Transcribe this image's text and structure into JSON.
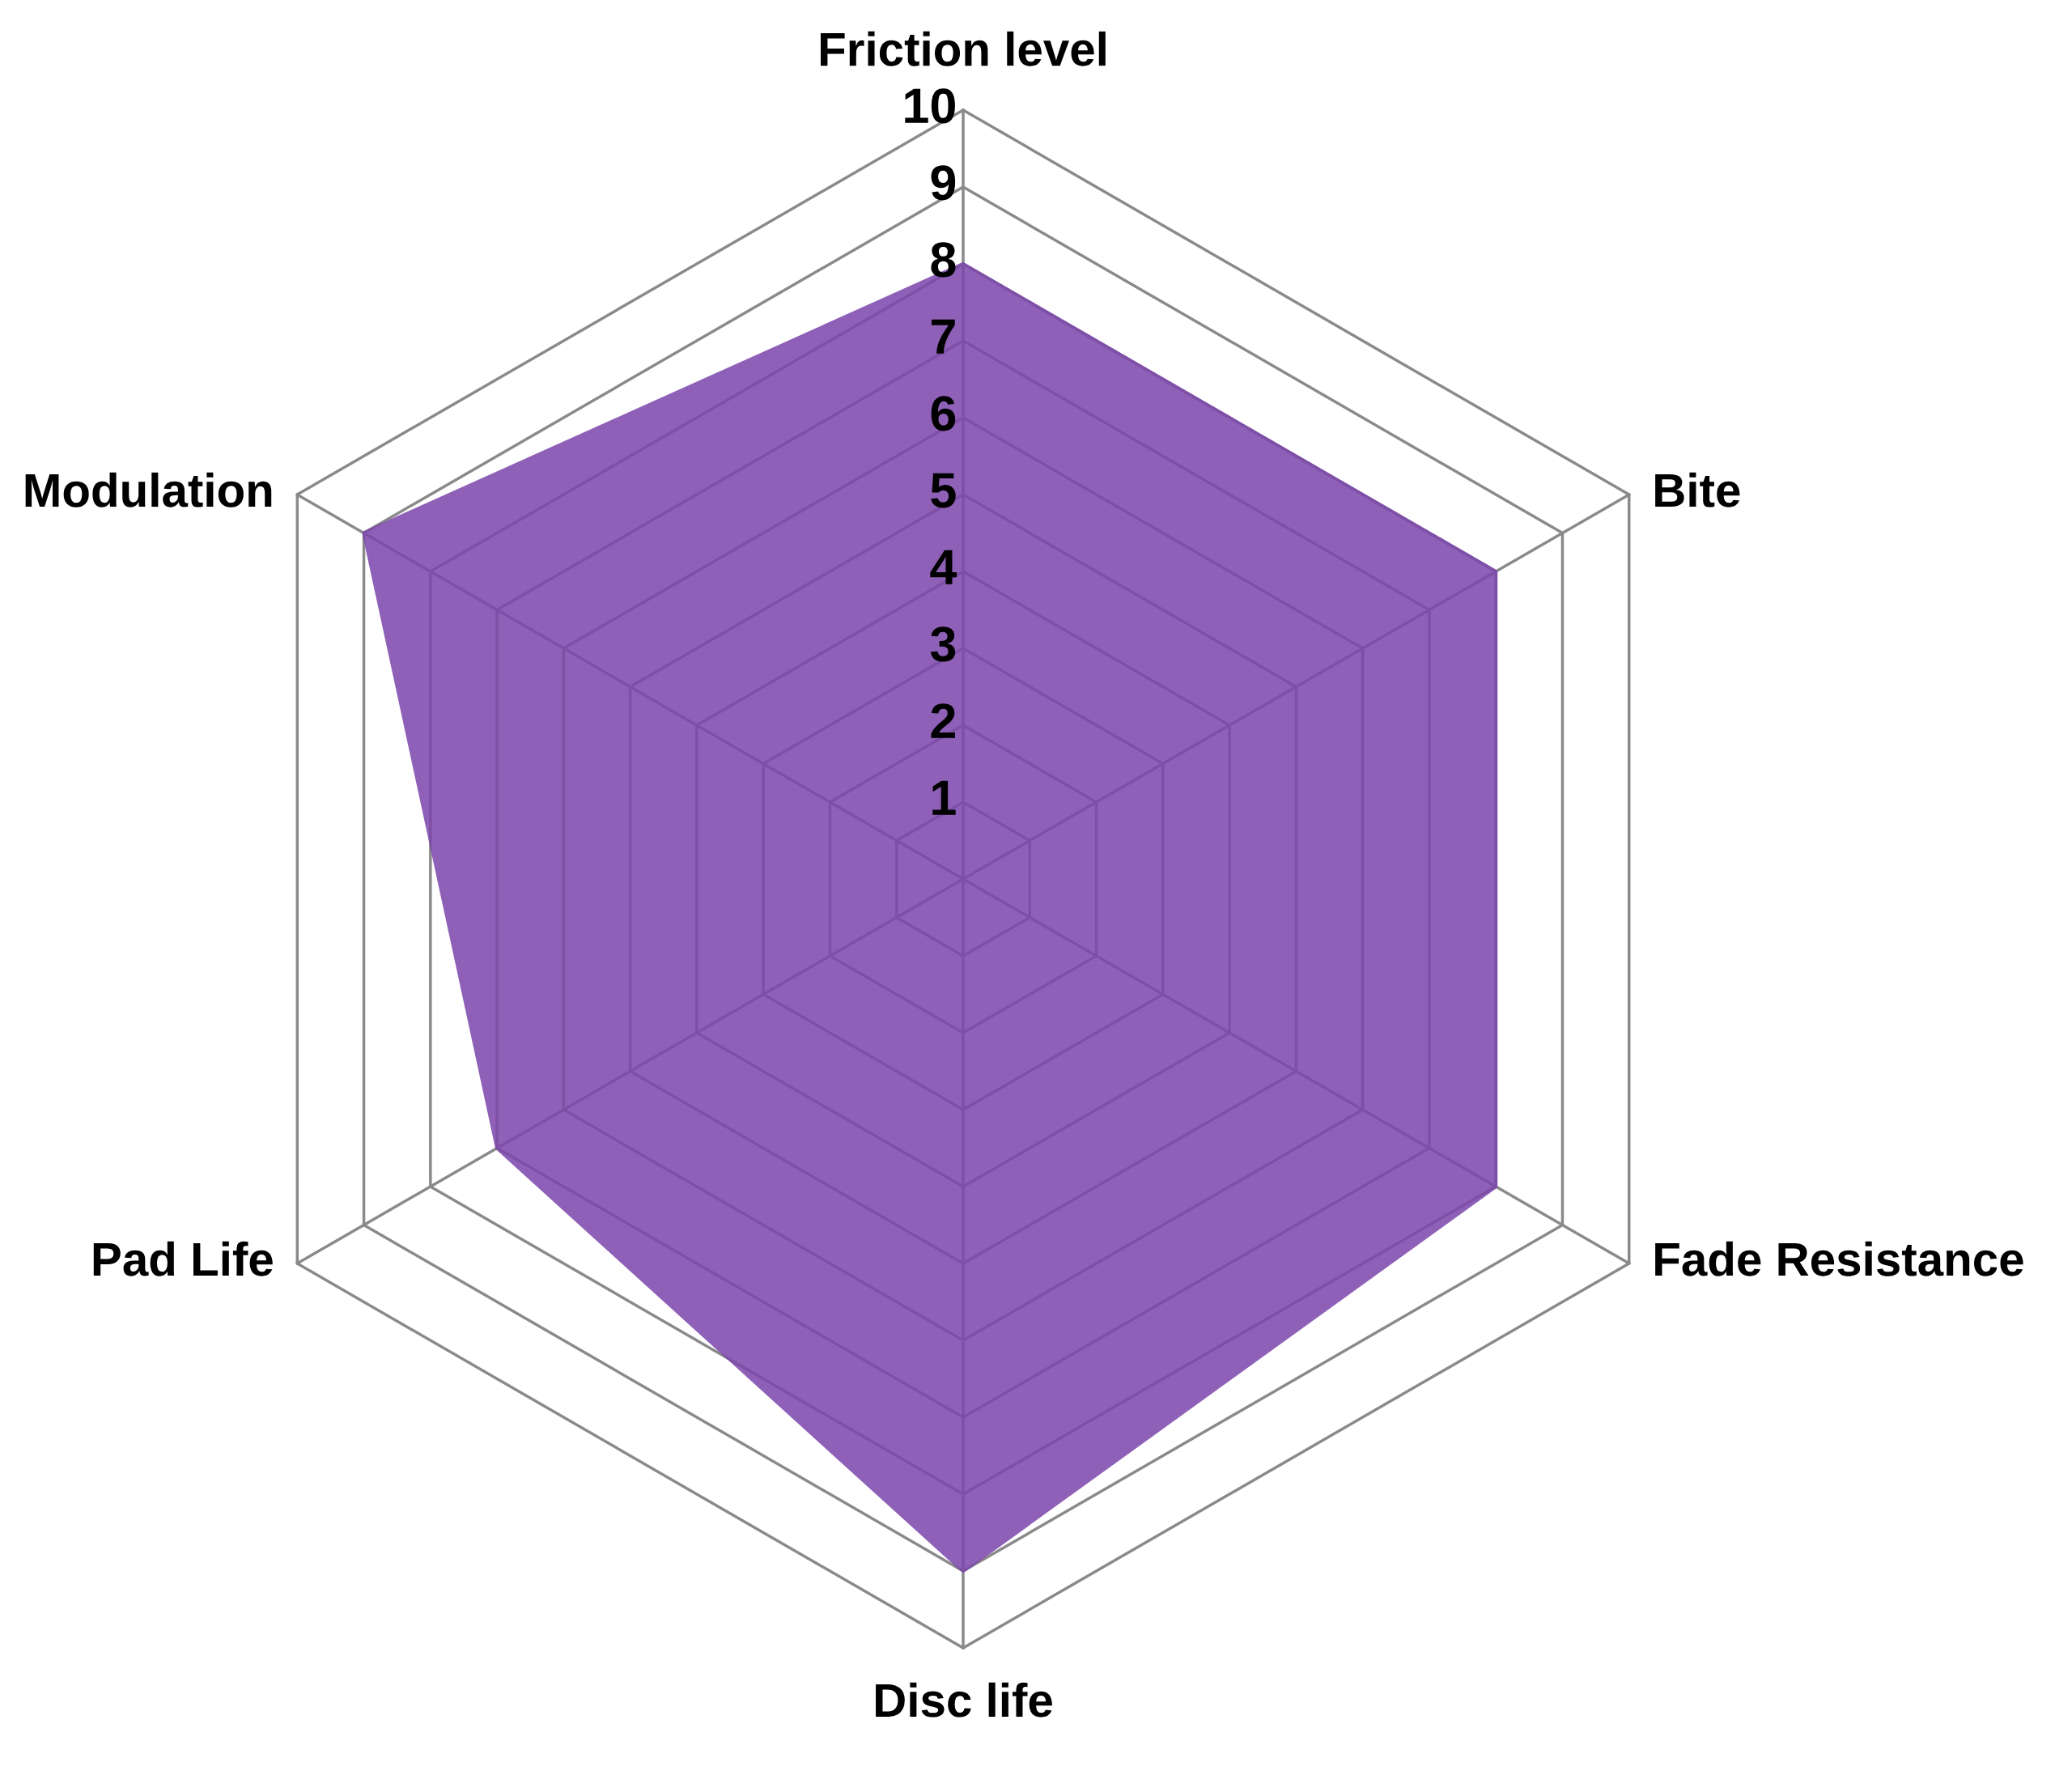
{
  "chart_data": {
    "type": "radar",
    "categories": [
      "Friction level",
      "Bite",
      "Fade Resistance",
      "Disc life",
      "Pad Life",
      "Modulation"
    ],
    "series": [
      {
        "color": "#7b45ab",
        "values": [
          8,
          8,
          8,
          9,
          7,
          9
        ]
      }
    ],
    "ylim": [
      0,
      10
    ],
    "yticks": [
      1,
      2,
      3,
      4,
      5,
      6,
      7,
      8,
      9,
      10
    ],
    "grid": true
  }
}
